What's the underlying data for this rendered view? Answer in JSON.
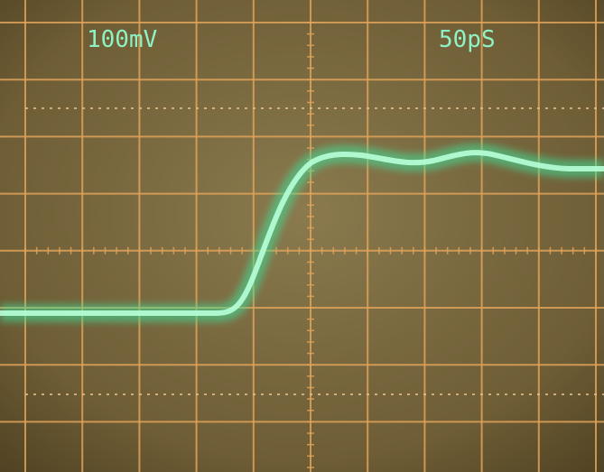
{
  "screen": {
    "volts_per_div": "100mV",
    "time_per_div": "50pS"
  }
}
